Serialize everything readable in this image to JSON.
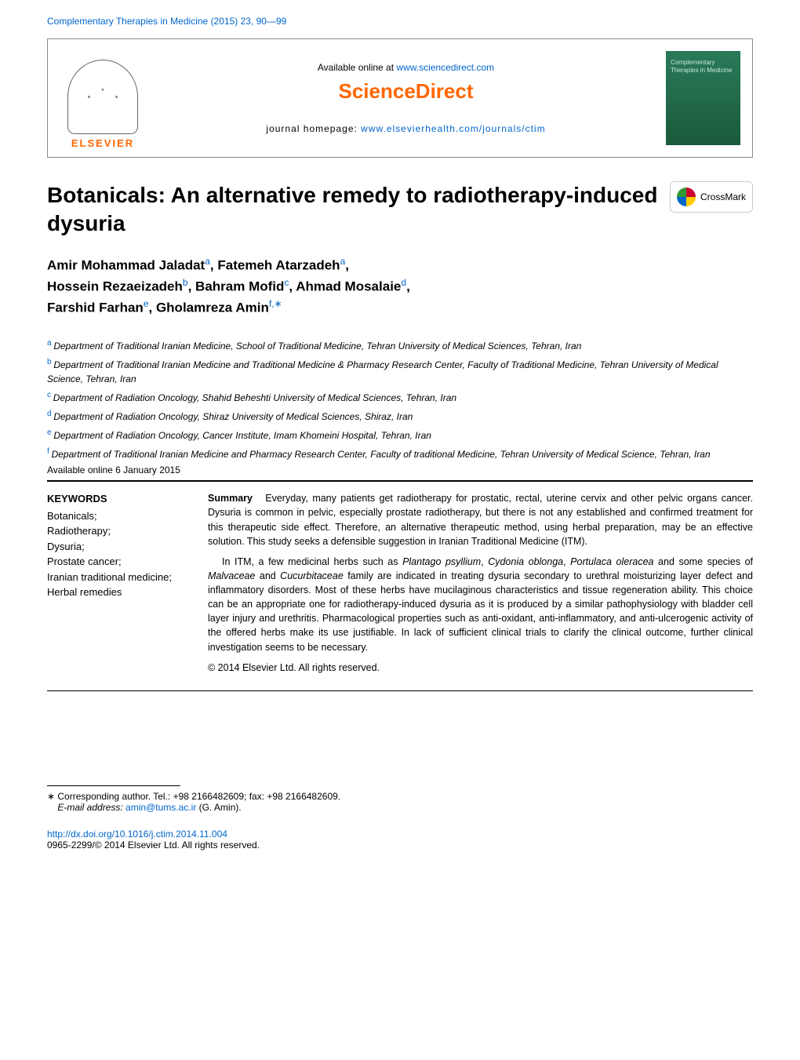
{
  "journal_ref": {
    "name": "Complementary Therapies in Medicine",
    "year": "(2015)",
    "volume": "23",
    "pages": "90—99"
  },
  "header": {
    "available_text": "Available online at ",
    "available_url": "www.sciencedirect.com",
    "brand": "ScienceDirect",
    "homepage_label": "journal homepage: ",
    "homepage_url": "www.elsevierhealth.com/journals/ctim",
    "elsevier": "ELSEVIER",
    "cover_text": "Complementary Therapies in Medicine"
  },
  "crossmark_label": "CrossMark",
  "title": "Botanicals: An alternative remedy to radiotherapy-induced dysuria",
  "authors_html": "Amir Mohammad Jaladat|a|, Fatemeh Atarzadeh|a|, Hossein Rezaeizadeh|b|, Bahram Mofid|c|, Ahmad Mosalaie|d|, Farshid Farhan|e|, Gholamreza Amin|f,*|",
  "authors": [
    {
      "name": "Amir Mohammad Jaladat",
      "sup": "a"
    },
    {
      "name": "Fatemeh Atarzadeh",
      "sup": "a"
    },
    {
      "name": "Hossein Rezaeizadeh",
      "sup": "b"
    },
    {
      "name": "Bahram Mofid",
      "sup": "c"
    },
    {
      "name": "Ahmad Mosalaie",
      "sup": "d"
    },
    {
      "name": "Farshid Farhan",
      "sup": "e"
    },
    {
      "name": "Gholamreza Amin",
      "sup": "f,∗"
    }
  ],
  "affiliations": [
    {
      "sup": "a",
      "text": "Department of Traditional Iranian Medicine, School of Traditional Medicine, Tehran University of Medical Sciences, Tehran, Iran"
    },
    {
      "sup": "b",
      "text": "Department of Traditional Iranian Medicine and Traditional Medicine & Pharmacy Research Center, Faculty of Traditional Medicine, Tehran University of Medical Science, Tehran, Iran"
    },
    {
      "sup": "c",
      "text": "Department of Radiation Oncology, Shahid Beheshti University of Medical Sciences, Tehran, Iran"
    },
    {
      "sup": "d",
      "text": "Department of Radiation Oncology, Shiraz University of Medical Sciences, Shiraz, Iran"
    },
    {
      "sup": "e",
      "text": "Department of Radiation Oncology, Cancer Institute, Imam Khomeini Hospital, Tehran, Iran"
    },
    {
      "sup": "f",
      "text": "Department of Traditional Iranian Medicine and Pharmacy Research Center, Faculty of traditional Medicine, Tehran University of Medical Science, Tehran, Iran"
    }
  ],
  "available_online": "Available online 6 January 2015",
  "keywords": {
    "heading": "KEYWORDS",
    "items": "Botanicals; Radiotherapy; Dysuria; Prostate cancer; Iranian traditional medicine; Herbal remedies"
  },
  "summary": {
    "label": "Summary",
    "p1": "Everyday, many patients get radiotherapy for prostatic, rectal, uterine cervix and other pelvic organs cancer. Dysuria is common in pelvic, especially prostate radiotherapy, but there is not any established and confirmed treatment for this therapeutic side effect. Therefore, an alternative therapeutic method, using herbal preparation, may be an effective solution. This study seeks a defensible suggestion in Iranian Traditional Medicine (ITM).",
    "p2": "In ITM, a few medicinal herbs such as Plantago psyllium, Cydonia oblonga, Portulaca oleracea and some species of Malvaceae and Cucurbitaceae family are indicated in treating dysuria secondary to urethral moisturizing layer defect and inflammatory disorders. Most of these herbs have mucilaginous characteristics and tissue regeneration ability. This choice can be an appropriate one for radiotherapy-induced dysuria as it is produced by a similar pathophysiology with bladder cell layer injury and urethritis. Pharmacological properties such as anti-oxidant, anti-inflammatory, and anti-ulcerogenic activity of the offered herbs make its use justifiable. In lack of sufficient clinical trials to clarify the clinical outcome, further clinical investigation seems to be necessary.",
    "copyright": "© 2014 Elsevier Ltd. All rights reserved."
  },
  "footnote": {
    "corresponding": "∗ Corresponding author. Tel.: +98 2166482609; fax: +98 2166482609.",
    "email_label": "E-mail address: ",
    "email": "amin@tums.ac.ir",
    "email_suffix": " (G. Amin)."
  },
  "doi": {
    "url": "http://dx.doi.org/10.1016/j.ctim.2014.11.004",
    "issn_copyright": "0965-2299/© 2014 Elsevier Ltd. All rights reserved."
  },
  "colors": {
    "link": "#0066cc",
    "brand_orange": "#ff6600",
    "cover_bg_top": "#2a7a5a",
    "cover_bg_bottom": "#1a5a3a",
    "cover_text": "#c8e8d8"
  }
}
